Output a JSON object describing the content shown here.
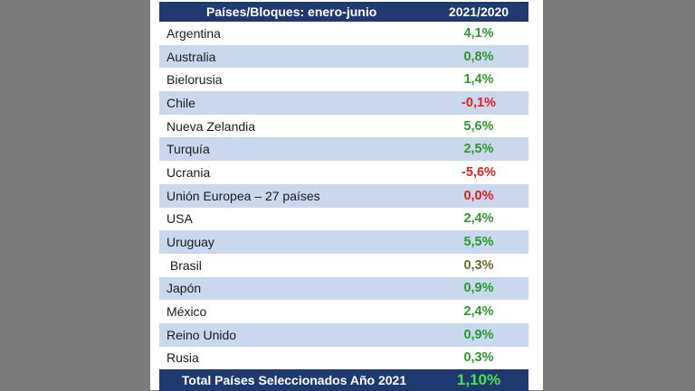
{
  "table": {
    "header": {
      "col1": "Países/Bloques: enero-junio",
      "col2": "2021/2020"
    },
    "rows": [
      {
        "name": "Argentina",
        "value": "4,1%",
        "color": "#2a9a2a"
      },
      {
        "name": "Australia",
        "value": "0,8%",
        "color": "#2a9a2a"
      },
      {
        "name": "Bielorusia",
        "value": "1,4%",
        "color": "#2a9a2a"
      },
      {
        "name": "Chile",
        "value": "-0,1%",
        "color": "#e0201e"
      },
      {
        "name": "Nueva Zelandia",
        "value": "5,6%",
        "color": "#2a9a2a"
      },
      {
        "name": "Turquía",
        "value": "2,5%",
        "color": "#2a9a2a"
      },
      {
        "name": "Ucrania",
        "value": "-5,6%",
        "color": "#e0201e"
      },
      {
        "name": "Unión Europea – 27 países",
        "value": "0,0%",
        "color": "#e0201e"
      },
      {
        "name": "USA",
        "value": "2,4%",
        "color": "#2a9a2a"
      },
      {
        "name": "Uruguay",
        "value": "5,5%",
        "color": "#2a9a2a"
      },
      {
        "name": " Brasil",
        "value": "0,3%",
        "color": "#6b6b2a"
      },
      {
        "name": "Japón",
        "value": "0,9%",
        "color": "#2a9a2a"
      },
      {
        "name": "México",
        "value": "2,4%",
        "color": "#2a9a2a"
      },
      {
        "name": "Reino Unido",
        "value": "0,9%",
        "color": "#2a9a2a"
      },
      {
        "name": "Rusia",
        "value": "0,3%",
        "color": "#2a9a2a"
      }
    ],
    "total": {
      "name": "Total Países Seleccionados Año 2021",
      "value": "1,10%"
    }
  }
}
